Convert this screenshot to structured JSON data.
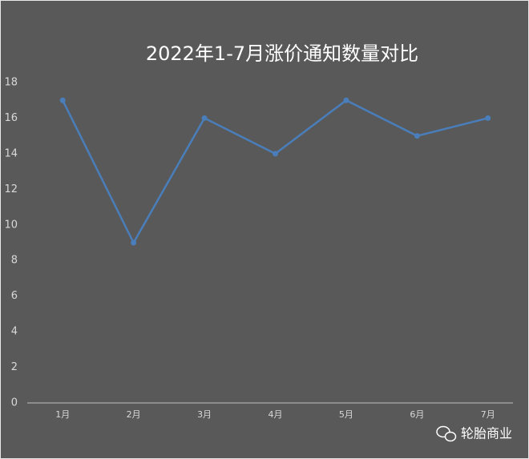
{
  "chart_data": {
    "type": "line",
    "title": "2022年1-7月涨价通知数量对比",
    "categories": [
      "1月",
      "2月",
      "3月",
      "4月",
      "5月",
      "6月",
      "7月"
    ],
    "values": [
      17,
      9,
      16,
      14,
      17,
      15,
      16
    ],
    "color": "#4a7ebb",
    "ylim": [
      0,
      18
    ],
    "yticks": [
      0,
      2,
      4,
      6,
      8,
      10,
      12,
      14,
      16,
      18
    ],
    "grid": false
  },
  "watermark": "轮胎商业"
}
